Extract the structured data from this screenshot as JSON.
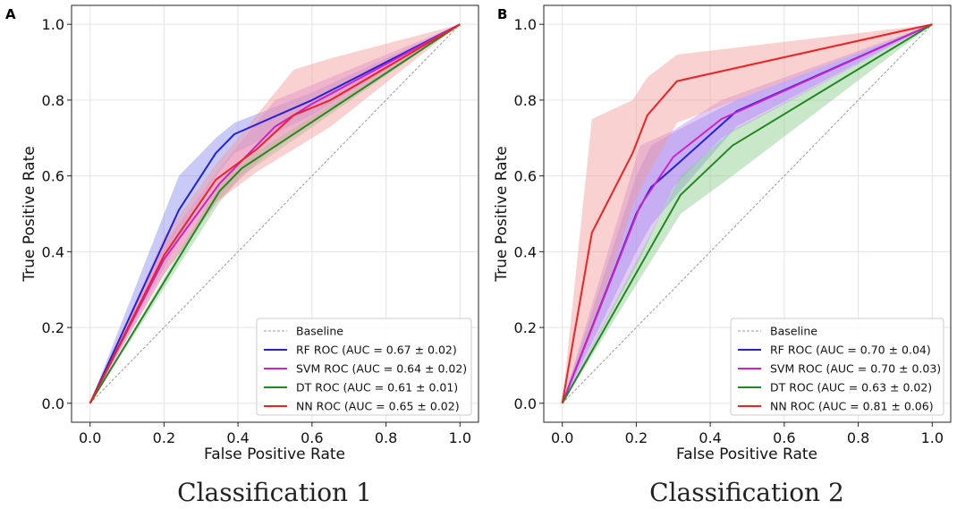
{
  "chart_data": [
    {
      "type": "line",
      "panel_label": "A",
      "caption": "Classification 1",
      "xlabel": "False Positive Rate",
      "ylabel": "True Positive Rate",
      "xlim": [
        -0.05,
        1.05
      ],
      "ylim": [
        -0.05,
        1.05
      ],
      "xticks": [
        "0.0",
        "0.2",
        "0.4",
        "0.6",
        "0.8",
        "1.0"
      ],
      "yticks": [
        "0.0",
        "0.2",
        "0.4",
        "0.6",
        "0.8",
        "1.0"
      ],
      "grid": true,
      "legend_position": "lower-right",
      "baseline": {
        "name": "Baseline",
        "color": "#999999",
        "x": [
          0,
          1
        ],
        "y": [
          0,
          1
        ]
      },
      "series": [
        {
          "name": "RF ROC (AUC = 0.67 ± 0.02)",
          "color": "#2222dd",
          "fill": "#8a8af0",
          "x": [
            0,
            0.24,
            0.34,
            0.39,
            0.6,
            1.0
          ],
          "y": [
            0,
            0.51,
            0.66,
            0.71,
            0.8,
            1.0
          ],
          "upper": [
            0,
            0.6,
            0.7,
            0.74,
            0.82,
            1.0
          ],
          "lower": [
            0,
            0.43,
            0.6,
            0.66,
            0.76,
            1.0
          ]
        },
        {
          "name": "SVM ROC (AUC = 0.64 ± 0.02)",
          "color": "#cc22cc",
          "fill": "#d88ae8",
          "x": [
            0,
            0.2,
            0.35,
            0.5,
            0.6,
            1.0
          ],
          "y": [
            0,
            0.38,
            0.58,
            0.73,
            0.79,
            1.0
          ],
          "upper": [
            0,
            0.42,
            0.62,
            0.8,
            0.84,
            1.0
          ],
          "lower": [
            0,
            0.34,
            0.54,
            0.68,
            0.74,
            1.0
          ]
        },
        {
          "name": "DT ROC (AUC = 0.61 ± 0.01)",
          "color": "#228822",
          "fill": "#88cc88",
          "x": [
            0,
            0.35,
            0.41,
            1.0
          ],
          "y": [
            0,
            0.56,
            0.62,
            1.0
          ],
          "upper": [
            0,
            0.58,
            0.64,
            1.0
          ],
          "lower": [
            0,
            0.53,
            0.6,
            1.0
          ]
        },
        {
          "name": "NN ROC (AUC = 0.65 ± 0.02)",
          "color": "#ee2222",
          "fill": "#f29a9a",
          "x": [
            0,
            0.2,
            0.34,
            0.45,
            0.55,
            0.65,
            1.0
          ],
          "y": [
            0,
            0.39,
            0.59,
            0.67,
            0.76,
            0.8,
            1.0
          ],
          "upper": [
            0,
            0.44,
            0.63,
            0.76,
            0.88,
            0.91,
            1.0
          ],
          "lower": [
            0,
            0.34,
            0.53,
            0.61,
            0.67,
            0.73,
            1.0
          ]
        }
      ]
    },
    {
      "type": "line",
      "panel_label": "B",
      "caption": "Classification 2",
      "xlabel": "False Positive Rate",
      "ylabel": "True Positive Rate",
      "xlim": [
        -0.05,
        1.05
      ],
      "ylim": [
        -0.05,
        1.05
      ],
      "xticks": [
        "0.0",
        "0.2",
        "0.4",
        "0.6",
        "0.8",
        "1.0"
      ],
      "yticks": [
        "0.0",
        "0.2",
        "0.4",
        "0.6",
        "0.8",
        "1.0"
      ],
      "grid": true,
      "legend_position": "lower-right",
      "baseline": {
        "name": "Baseline",
        "color": "#999999",
        "x": [
          0,
          1
        ],
        "y": [
          0,
          1
        ]
      },
      "series": [
        {
          "name": "RF ROC (AUC = 0.70 ± 0.04)",
          "color": "#2222dd",
          "fill": "#8a8af0",
          "x": [
            0,
            0.2,
            0.24,
            0.31,
            0.47,
            1.0
          ],
          "y": [
            0,
            0.5,
            0.57,
            0.63,
            0.77,
            1.0
          ],
          "upper": [
            0,
            0.6,
            0.68,
            0.72,
            0.8,
            1.0
          ],
          "lower": [
            0,
            0.4,
            0.47,
            0.55,
            0.73,
            1.0
          ]
        },
        {
          "name": "SVM ROC (AUC = 0.70 ± 0.03)",
          "color": "#cc22cc",
          "fill": "#c48aea",
          "x": [
            0,
            0.21,
            0.3,
            0.43,
            1.0
          ],
          "y": [
            0,
            0.52,
            0.65,
            0.75,
            1.0
          ],
          "upper": [
            0,
            0.68,
            0.72,
            0.8,
            1.0
          ],
          "lower": [
            0,
            0.38,
            0.57,
            0.7,
            1.0
          ]
        },
        {
          "name": "DT ROC (AUC = 0.63 ± 0.02)",
          "color": "#228822",
          "fill": "#88cc88",
          "x": [
            0,
            0.32,
            0.46,
            1.0
          ],
          "y": [
            0,
            0.55,
            0.68,
            1.0
          ],
          "upper": [
            0,
            0.6,
            0.72,
            1.0
          ],
          "lower": [
            0,
            0.5,
            0.6,
            1.0
          ]
        },
        {
          "name": "NN ROC (AUC = 0.81 ± 0.06)",
          "color": "#ee2222",
          "fill": "#f29a9a",
          "x": [
            0,
            0.08,
            0.19,
            0.23,
            0.31,
            1.0
          ],
          "y": [
            0,
            0.45,
            0.66,
            0.76,
            0.85,
            1.0
          ],
          "upper": [
            0,
            0.75,
            0.8,
            0.86,
            0.92,
            1.0
          ],
          "lower": [
            0,
            0.18,
            0.52,
            0.6,
            0.74,
            1.0
          ]
        }
      ]
    }
  ]
}
